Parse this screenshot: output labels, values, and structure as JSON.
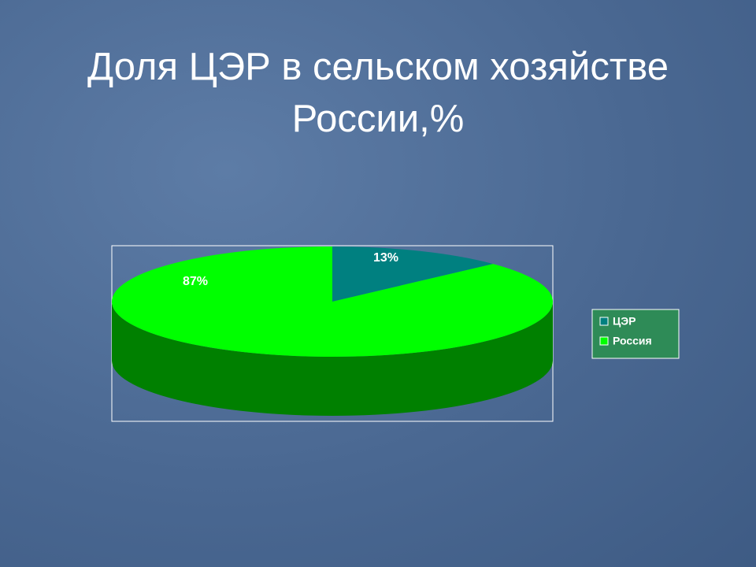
{
  "chart_data": {
    "type": "pie",
    "title": "Доля ЦЭР в сельском хозяйстве России,%",
    "categories": [
      "ЦЭР",
      "Россия"
    ],
    "values": [
      13,
      87
    ],
    "value_labels": [
      "13%",
      "87%"
    ],
    "colors": [
      "#008080",
      "#00ff00"
    ],
    "legend": "right"
  }
}
